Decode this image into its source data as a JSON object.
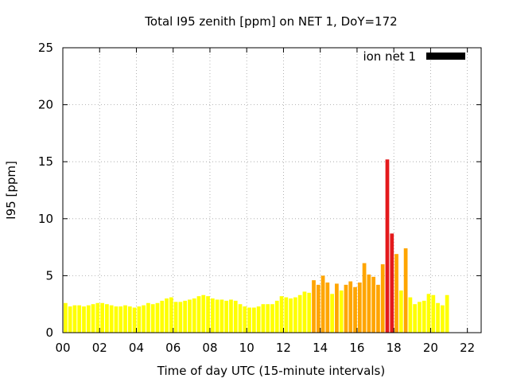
{
  "chart_data": {
    "type": "bar",
    "title": "Total I95 zenith [ppm] on NET 1, DoY=172",
    "xlabel": "Time of day UTC (15-minute intervals)",
    "ylabel": "I95 [ppm]",
    "xlim": [
      0,
      22.75
    ],
    "ylim": [
      0,
      25
    ],
    "xticks": [
      "00",
      "02",
      "04",
      "06",
      "08",
      "10",
      "12",
      "14",
      "16",
      "18",
      "20",
      "22"
    ],
    "yticks": [
      "0",
      "5",
      "10",
      "15",
      "20",
      "25"
    ],
    "grid": true,
    "legend_position": "top-right",
    "series": [
      {
        "name": "ion net 1",
        "legend_color": "#000000",
        "start_hour": 0,
        "step_hours": 0.25,
        "values": [
          2.6,
          2.3,
          2.4,
          2.4,
          2.3,
          2.4,
          2.5,
          2.6,
          2.6,
          2.5,
          2.4,
          2.3,
          2.3,
          2.4,
          2.3,
          2.2,
          2.3,
          2.4,
          2.6,
          2.5,
          2.6,
          2.8,
          3.0,
          3.1,
          2.7,
          2.7,
          2.8,
          2.9,
          3.0,
          3.2,
          3.3,
          3.2,
          3.0,
          2.9,
          2.9,
          2.8,
          2.9,
          2.8,
          2.5,
          2.3,
          2.2,
          2.2,
          2.3,
          2.5,
          2.5,
          2.5,
          2.8,
          3.2,
          3.1,
          3.0,
          3.1,
          3.3,
          3.6,
          3.5,
          4.6,
          4.2,
          5.0,
          4.4,
          3.4,
          4.3,
          3.7,
          4.2,
          4.5,
          4.0,
          4.4,
          6.1,
          5.1,
          4.9,
          4.2,
          6.0,
          15.2,
          8.7,
          6.9,
          3.7,
          7.4,
          3.1,
          2.5,
          2.7,
          2.8,
          3.4,
          3.3,
          2.6,
          2.4,
          3.3
        ],
        "bar_colors": [
          "#ffff00",
          "#ffa500",
          "#e41a1c"
        ],
        "color_bands": [
          {
            "max": 4,
            "color": "#ffff00"
          },
          {
            "max": 8,
            "color": "#ffa500"
          },
          {
            "max": 1000,
            "color": "#e41a1c"
          }
        ]
      }
    ]
  }
}
